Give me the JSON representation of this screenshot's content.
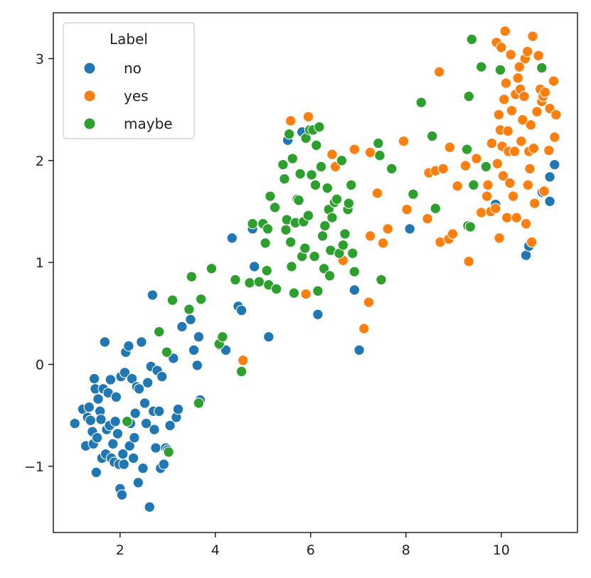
{
  "chart_data": {
    "type": "scatter",
    "xlim": [
      0.6,
      11.6
    ],
    "ylim": [
      -1.65,
      3.45
    ],
    "x_ticks": [
      2,
      4,
      6,
      8,
      10
    ],
    "y_ticks": [
      -1,
      0,
      1,
      2,
      3
    ],
    "x_tick_labels": [
      "2",
      "4",
      "6",
      "8",
      "10"
    ],
    "y_tick_labels": [
      "−1",
      "0",
      "1",
      "2",
      "3"
    ],
    "grid": false,
    "legend": {
      "title": "Label",
      "placement": "top-left"
    },
    "series": [
      {
        "name": "no",
        "color": "#1f77b4",
        "points": [
          [
            1.05,
            -0.58
          ],
          [
            1.22,
            -0.44
          ],
          [
            1.28,
            -0.8
          ],
          [
            1.32,
            -0.52
          ],
          [
            1.35,
            -0.42
          ],
          [
            1.38,
            -0.55
          ],
          [
            1.42,
            -0.66
          ],
          [
            1.44,
            -0.78
          ],
          [
            1.46,
            -0.14
          ],
          [
            1.48,
            -0.24
          ],
          [
            1.5,
            -1.06
          ],
          [
            1.52,
            -0.72
          ],
          [
            1.54,
            -0.34
          ],
          [
            1.58,
            -0.46
          ],
          [
            1.6,
            -0.54
          ],
          [
            1.62,
            -0.92
          ],
          [
            1.65,
            -0.24
          ],
          [
            1.68,
            0.22
          ],
          [
            1.7,
            -0.88
          ],
          [
            1.72,
            -0.64
          ],
          [
            1.75,
            -0.28
          ],
          [
            1.78,
            -0.6
          ],
          [
            1.8,
            -0.15
          ],
          [
            1.82,
            -0.92
          ],
          [
            1.85,
            -0.78
          ],
          [
            1.88,
            -0.96
          ],
          [
            1.9,
            -0.56
          ],
          [
            1.92,
            -0.32
          ],
          [
            1.95,
            -0.68
          ],
          [
            1.98,
            -0.98
          ],
          [
            2.0,
            -1.22
          ],
          [
            2.02,
            -0.12
          ],
          [
            2.04,
            -1.28
          ],
          [
            2.06,
            -0.88
          ],
          [
            2.08,
            -0.98
          ],
          [
            2.1,
            -0.08
          ],
          [
            2.12,
            0.12
          ],
          [
            2.15,
            -0.56
          ],
          [
            2.18,
            0.18
          ],
          [
            2.2,
            -0.8
          ],
          [
            2.22,
            -0.58
          ],
          [
            2.25,
            -0.14
          ],
          [
            2.28,
            -0.92
          ],
          [
            2.3,
            -0.72
          ],
          [
            2.32,
            -0.48
          ],
          [
            2.35,
            -0.22
          ],
          [
            2.38,
            -1.16
          ],
          [
            2.4,
            -0.24
          ],
          [
            2.45,
            0.22
          ],
          [
            2.48,
            -1.02
          ],
          [
            2.52,
            -0.38
          ],
          [
            2.55,
            -0.58
          ],
          [
            2.58,
            -0.18
          ],
          [
            2.62,
            -1.4
          ],
          [
            2.65,
            -0.02
          ],
          [
            2.68,
            0.68
          ],
          [
            2.7,
            -0.46
          ],
          [
            2.72,
            -0.64
          ],
          [
            2.75,
            -0.82
          ],
          [
            2.78,
            -0.06
          ],
          [
            2.82,
            -0.46
          ],
          [
            2.85,
            -1.02
          ],
          [
            2.88,
            -0.12
          ],
          [
            2.92,
            -0.98
          ],
          [
            2.96,
            -0.82
          ],
          [
            3.0,
            -0.84
          ],
          [
            3.05,
            -0.6
          ],
          [
            3.12,
            0.06
          ],
          [
            3.18,
            -0.52
          ],
          [
            3.22,
            -0.44
          ],
          [
            3.3,
            0.37
          ],
          [
            3.48,
            0.44
          ],
          [
            3.55,
            0.14
          ],
          [
            3.62,
            -0.01
          ],
          [
            3.65,
            0.27
          ],
          [
            3.68,
            -0.35
          ],
          [
            4.08,
            0.19
          ],
          [
            4.22,
            0.14
          ],
          [
            4.35,
            1.24
          ],
          [
            4.48,
            0.57
          ],
          [
            4.55,
            0.53
          ],
          [
            4.78,
            1.33
          ],
          [
            4.82,
            0.96
          ],
          [
            5.12,
            0.27
          ],
          [
            5.52,
            2.2
          ],
          [
            5.82,
            2.28
          ],
          [
            6.15,
            0.49
          ],
          [
            6.92,
            0.73
          ],
          [
            7.02,
            0.14
          ],
          [
            8.08,
            1.33
          ],
          [
            9.88,
            1.57
          ],
          [
            10.52,
            1.07
          ],
          [
            10.58,
            1.16
          ],
          [
            10.86,
            1.69
          ],
          [
            11.02,
            1.84
          ],
          [
            11.02,
            1.6
          ],
          [
            11.12,
            1.96
          ]
        ]
      },
      {
        "name": "yes",
        "color": "#ff7f0e",
        "points": [
          [
            4.58,
            0.04
          ],
          [
            5.58,
            2.39
          ],
          [
            5.9,
            0.69
          ],
          [
            5.95,
            2.43
          ],
          [
            6.45,
            2.06
          ],
          [
            6.52,
            1.94
          ],
          [
            6.68,
            1.02
          ],
          [
            6.92,
            2.11
          ],
          [
            7.12,
            0.35
          ],
          [
            7.22,
            0.61
          ],
          [
            7.25,
            1.26
          ],
          [
            7.25,
            2.08
          ],
          [
            7.4,
            1.68
          ],
          [
            7.52,
            1.19
          ],
          [
            7.62,
            1.33
          ],
          [
            7.95,
            2.19
          ],
          [
            8.02,
            1.52
          ],
          [
            8.45,
            1.43
          ],
          [
            8.48,
            1.88
          ],
          [
            8.62,
            1.9
          ],
          [
            8.7,
            2.87
          ],
          [
            8.72,
            1.2
          ],
          [
            8.78,
            1.92
          ],
          [
            8.9,
            1.23
          ],
          [
            8.92,
            2.13
          ],
          [
            8.98,
            1.28
          ],
          [
            9.08,
            1.75
          ],
          [
            9.25,
            1.95
          ],
          [
            9.32,
            1.01
          ],
          [
            9.48,
            2.02
          ],
          [
            9.58,
            1.49
          ],
          [
            9.7,
            1.65
          ],
          [
            9.72,
            1.76
          ],
          [
            9.78,
            1.5
          ],
          [
            9.8,
            2.17
          ],
          [
            9.88,
            1.53
          ],
          [
            9.9,
            3.16
          ],
          [
            9.92,
            1.97
          ],
          [
            9.95,
            2.45
          ],
          [
            9.96,
            1.24
          ],
          [
            9.98,
            2.3
          ],
          [
            10.0,
            3.11
          ],
          [
            10.02,
            2.14
          ],
          [
            10.04,
            1.85
          ],
          [
            10.06,
            2.6
          ],
          [
            10.08,
            3.27
          ],
          [
            10.1,
            2.76
          ],
          [
            10.12,
            1.44
          ],
          [
            10.14,
            2.29
          ],
          [
            10.15,
            2.09
          ],
          [
            10.18,
            1.78
          ],
          [
            10.2,
            3.04
          ],
          [
            10.22,
            2.49
          ],
          [
            10.25,
            1.65
          ],
          [
            10.28,
            2.09
          ],
          [
            10.3,
            2.65
          ],
          [
            10.32,
            1.44
          ],
          [
            10.35,
            2.81
          ],
          [
            10.38,
            2.92
          ],
          [
            10.4,
            2.7
          ],
          [
            10.42,
            2.19
          ],
          [
            10.45,
            2.4
          ],
          [
            10.48,
            2.63
          ],
          [
            10.5,
            3.0
          ],
          [
            10.52,
            1.38
          ],
          [
            10.55,
            3.07
          ],
          [
            10.56,
            1.76
          ],
          [
            10.58,
            2.09
          ],
          [
            10.6,
            1.92
          ],
          [
            10.62,
            2.35
          ],
          [
            10.64,
            1.2
          ],
          [
            10.66,
            3.22
          ],
          [
            10.68,
            2.12
          ],
          [
            10.7,
            1.58
          ],
          [
            10.75,
            2.48
          ],
          [
            10.78,
            3.03
          ],
          [
            10.82,
            2.7
          ],
          [
            10.85,
            2.58
          ],
          [
            10.88,
            2.63
          ],
          [
            10.9,
            1.7
          ],
          [
            10.92,
            2.67
          ],
          [
            11.0,
            2.1
          ],
          [
            11.02,
            2.51
          ],
          [
            11.1,
            2.78
          ],
          [
            11.12,
            2.23
          ],
          [
            11.15,
            2.45
          ]
        ]
      },
      {
        "name": "maybe",
        "color": "#2ca02c",
        "points": [
          [
            2.15,
            -0.56
          ],
          [
            2.82,
            0.32
          ],
          [
            2.98,
            0.12
          ],
          [
            3.02,
            -0.86
          ],
          [
            3.1,
            0.63
          ],
          [
            3.45,
            0.54
          ],
          [
            3.5,
            0.86
          ],
          [
            3.65,
            -0.38
          ],
          [
            3.7,
            0.64
          ],
          [
            3.92,
            0.94
          ],
          [
            4.08,
            0.2
          ],
          [
            4.15,
            0.27
          ],
          [
            4.42,
            0.83
          ],
          [
            4.55,
            -0.07
          ],
          [
            4.72,
            0.8
          ],
          [
            4.78,
            1.38
          ],
          [
            4.92,
            0.81
          ],
          [
            5.0,
            1.38
          ],
          [
            5.05,
            1.19
          ],
          [
            5.08,
            0.92
          ],
          [
            5.1,
            1.33
          ],
          [
            5.12,
            0.78
          ],
          [
            5.15,
            1.65
          ],
          [
            5.25,
            1.54
          ],
          [
            5.28,
            0.74
          ],
          [
            5.42,
            1.96
          ],
          [
            5.45,
            1.82
          ],
          [
            5.48,
            1.32
          ],
          [
            5.5,
            1.42
          ],
          [
            5.55,
            2.26
          ],
          [
            5.58,
            1.2
          ],
          [
            5.6,
            0.96
          ],
          [
            5.62,
            2.02
          ],
          [
            5.65,
            0.7
          ],
          [
            5.68,
            1.39
          ],
          [
            5.72,
            1.62
          ],
          [
            5.75,
            1.61
          ],
          [
            5.78,
            1.87
          ],
          [
            5.82,
            1.06
          ],
          [
            5.85,
            1.4
          ],
          [
            5.88,
            1.14
          ],
          [
            5.9,
            2.22
          ],
          [
            5.95,
            1.46
          ],
          [
            5.98,
            2.3
          ],
          [
            6.02,
            1.86
          ],
          [
            6.05,
            2.3
          ],
          [
            6.08,
            1.06
          ],
          [
            6.1,
            1.76
          ],
          [
            6.12,
            2.15
          ],
          [
            6.15,
            0.72
          ],
          [
            6.18,
            2.33
          ],
          [
            6.22,
            1.94
          ],
          [
            6.25,
            1.26
          ],
          [
            6.28,
            0.94
          ],
          [
            6.3,
            1.36
          ],
          [
            6.35,
            1.73
          ],
          [
            6.38,
            1.52
          ],
          [
            6.4,
            0.87
          ],
          [
            6.42,
            1.12
          ],
          [
            6.45,
            1.44
          ],
          [
            6.5,
            1.59
          ],
          [
            6.55,
            1.62
          ],
          [
            6.6,
            1.09
          ],
          [
            6.65,
            2.0
          ],
          [
            6.68,
            1.17
          ],
          [
            6.72,
            1.28
          ],
          [
            6.78,
            1.52
          ],
          [
            6.8,
            1.58
          ],
          [
            6.85,
            1.76
          ],
          [
            6.88,
            1.09
          ],
          [
            6.92,
            0.91
          ],
          [
            7.42,
            2.17
          ],
          [
            7.45,
            2.05
          ],
          [
            7.48,
            0.83
          ],
          [
            7.7,
            1.92
          ],
          [
            8.15,
            1.67
          ],
          [
            8.32,
            2.57
          ],
          [
            8.55,
            2.24
          ],
          [
            8.62,
            1.53
          ],
          [
            9.28,
            2.11
          ],
          [
            9.3,
            1.36
          ],
          [
            9.32,
            2.63
          ],
          [
            9.35,
            1.35
          ],
          [
            9.38,
            3.19
          ],
          [
            9.42,
            1.76
          ],
          [
            9.58,
            2.92
          ],
          [
            9.68,
            1.94
          ],
          [
            9.98,
            2.89
          ],
          [
            10.85,
            2.91
          ]
        ]
      }
    ]
  }
}
